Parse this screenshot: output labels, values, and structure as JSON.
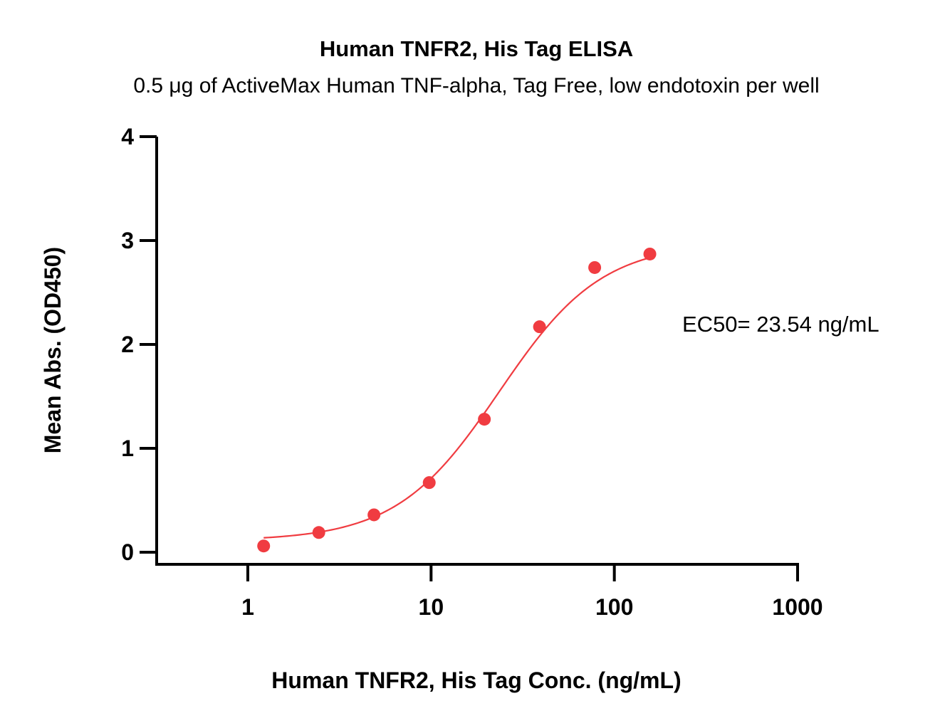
{
  "chart_data": {
    "type": "scatter",
    "title": "Human TNFR2, His Tag ELISA",
    "subtitle": "0.5 μg of ActiveMax Human TNF-alpha, Tag Free, low endotoxin per well",
    "xlabel": "Human TNFR2, His Tag Conc. (ng/mL)",
    "ylabel": "Mean Abs. (OD450)",
    "x_scale": "log",
    "xlim": [
      0.5,
      1000
    ],
    "ylim": [
      -0.1,
      4
    ],
    "x_ticks": [
      1,
      10,
      100,
      1000
    ],
    "x_tick_labels": [
      "1",
      "10",
      "100",
      "1000"
    ],
    "y_ticks": [
      0,
      1,
      2,
      3,
      4
    ],
    "y_tick_labels": [
      "0",
      "1",
      "2",
      "3",
      "4"
    ],
    "grid": false,
    "series": [
      {
        "color": "#f03c41",
        "x": [
          1.22,
          2.44,
          4.88,
          9.77,
          19.53,
          39.06,
          78.13,
          156.25
        ],
        "y": [
          0.06,
          0.19,
          0.36,
          0.67,
          1.28,
          2.17,
          2.74,
          2.87
        ],
        "fit": {
          "model": "4PL",
          "bottom": 0.11,
          "top": 2.98,
          "ec50": 23.54,
          "hill": 1.55,
          "x_range": [
            1.22,
            156.25
          ]
        }
      }
    ],
    "annotation": "EC50= 23.54 ng/mL"
  }
}
